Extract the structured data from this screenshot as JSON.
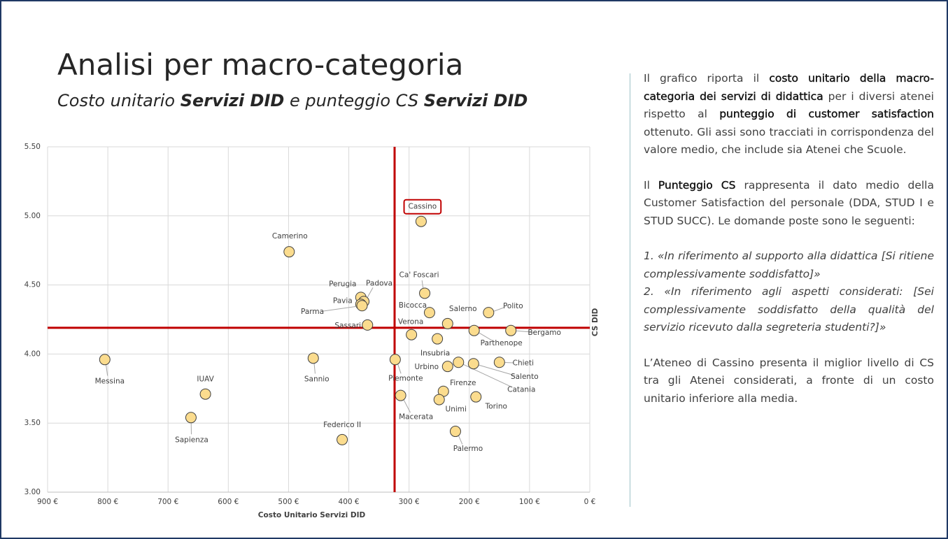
{
  "slide": {
    "title": "Analisi per macro-categoria",
    "subtitle": [
      {
        "text": "Costo unitario "
      },
      {
        "text": "Servizi DID",
        "bold": true
      },
      {
        "text": " e punteggio CS "
      },
      {
        "text": "Servizi DID",
        "bold": true
      }
    ]
  },
  "panel": {
    "paragraphs": [
      {
        "style": "normal",
        "runs": [
          {
            "text": "Il grafico riporta il "
          },
          {
            "text": "costo unitario della macro-categoria dei servizi di didattica",
            "bold": true
          },
          {
            "text": " per i diversi atenei rispetto al "
          },
          {
            "text": "punteggio di customer satisfaction",
            "bold": true
          },
          {
            "text": " ottenuto. Gli assi sono tracciati in corrispondenza del valore medio, che include sia Atenei che Scuole."
          }
        ]
      },
      {
        "style": "normal",
        "runs": [
          {
            "text": "Il "
          },
          {
            "text": "Punteggio CS",
            "bold": true
          },
          {
            "text": " rappresenta il dato medio della Customer Satisfaction del personale (DDA, STUD I e STUD SUCC). Le domande poste sono le seguenti:"
          }
        ]
      },
      {
        "style": "question",
        "runs": [
          {
            "text": "1. «In riferimento al supporto alla didattica [Si ritiene complessivamente soddisfatto]»"
          }
        ]
      },
      {
        "style": "question-last",
        "runs": [
          {
            "text": "2. «In riferimento agli aspetti considerati: [Sei complessivamente soddisfatto della qualità del servizio ricevuto dalla segreteria studenti?]»"
          }
        ]
      },
      {
        "style": "normal",
        "runs": [
          {
            "text": "L’Ateneo di Cassino presenta il miglior livello di CS tra gli Atenei considerati, a fronte di un costo unitario inferiore alla media."
          }
        ]
      }
    ]
  },
  "chart_data": {
    "type": "scatter",
    "x_label": "Costo Unitario Servizi DID",
    "y_label": "CS DID",
    "xlim": [
      900,
      0
    ],
    "ylim": [
      3.0,
      5.5
    ],
    "xticks": [
      {
        "value": 900,
        "label": "900 €"
      },
      {
        "value": 800,
        "label": "800 €"
      },
      {
        "value": 700,
        "label": "700 €"
      },
      {
        "value": 600,
        "label": "600 €"
      },
      {
        "value": 500,
        "label": "500 €"
      },
      {
        "value": 400,
        "label": "400 €"
      },
      {
        "value": 300,
        "label": "300 €"
      },
      {
        "value": 200,
        "label": "200 €"
      },
      {
        "value": 100,
        "label": "100 €"
      },
      {
        "value": 0,
        "label": "0 €"
      }
    ],
    "yticks": [
      {
        "value": 3.0,
        "label": "3.00"
      },
      {
        "value": 3.5,
        "label": "3.50"
      },
      {
        "value": 4.0,
        "label": "4.00"
      },
      {
        "value": 4.5,
        "label": "4.50"
      },
      {
        "value": 5.0,
        "label": "5.00"
      },
      {
        "value": 5.5,
        "label": "5.50"
      }
    ],
    "grid": true,
    "color": "#fbdc8e",
    "edge_color": "#404040",
    "reference_lines": {
      "x": 324,
      "y": 4.19,
      "color": "#c00000"
    },
    "highlighted": "Cassino",
    "point_labels": [
      "Cassino",
      "Camerino",
      "Perugia",
      "Padova",
      "Pavia",
      "Parma",
      "Ca' Foscari",
      "Bicocca",
      "Salerno",
      "Polito",
      "Sassari",
      "Verona",
      "Parthenope",
      "Bergamo",
      "Insubria",
      "Messina",
      "Sannio",
      "Piemonte",
      "Urbino",
      "Catania",
      "Salento",
      "Chieti",
      "Firenze",
      "Unimi",
      "Torino",
      "Macerata",
      "IUAV",
      "Sapienza",
      "Federico II",
      "Palermo"
    ],
    "x": [
      280,
      499,
      380,
      375,
      380,
      378,
      274,
      266,
      236,
      168,
      369,
      296,
      192,
      131,
      253,
      805,
      459,
      323,
      236,
      218,
      193,
      150,
      243,
      250,
      189,
      314,
      638,
      662,
      411,
      223
    ],
    "values": [
      4.96,
      4.74,
      4.41,
      4.38,
      4.36,
      4.35,
      4.44,
      4.3,
      4.22,
      4.3,
      4.21,
      4.14,
      4.17,
      4.17,
      4.11,
      3.96,
      3.97,
      3.96,
      3.91,
      3.94,
      3.93,
      3.94,
      3.73,
      3.67,
      3.69,
      3.7,
      3.71,
      3.54,
      3.38,
      3.44
    ]
  }
}
